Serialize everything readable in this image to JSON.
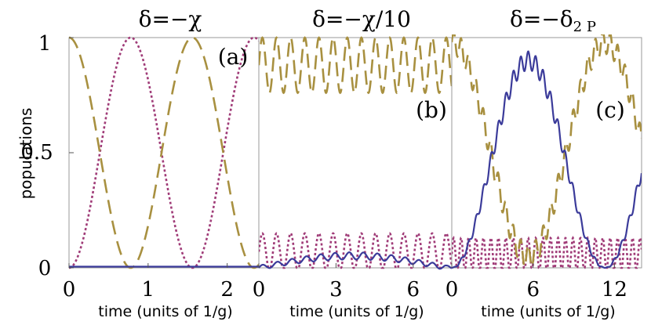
{
  "colors": {
    "solid": "#3b3b9a",
    "dashed": "#a89040",
    "dotted": "#a03c78"
  },
  "y_axis": {
    "label": "populations",
    "ticks": [
      "0",
      "0.5",
      "1"
    ],
    "tick_values": [
      0,
      0.5,
      1
    ],
    "ylim": [
      0,
      1
    ]
  },
  "chart_data": [
    {
      "type": "line",
      "title": "δ=−χ",
      "panel_label": "(a)",
      "xlabel": "time (units of 1/g)",
      "xlim": [
        0,
        2.4
      ],
      "ylim": [
        0,
        1
      ],
      "xticks": [
        0,
        1,
        2
      ],
      "xtick_labels": [
        "0",
        "1",
        "2"
      ],
      "series": [
        {
          "style": "solid",
          "description": "near zero",
          "model": "flat",
          "level": 0.005
        },
        {
          "style": "dashed",
          "description": "starts at 1",
          "model": "cos2",
          "period": 1.56,
          "amp": 1.0,
          "offset": 0.0
        },
        {
          "style": "dotted",
          "description": "starts at 0",
          "model": "sin2",
          "period": 1.56,
          "amp": 1.0,
          "offset": 0.0
        }
      ]
    },
    {
      "type": "line",
      "title": "δ=−χ/10",
      "panel_label": "(b)",
      "xlabel": "time (units of 1/g)",
      "xlim": [
        0,
        7.5
      ],
      "ylim": [
        0,
        1
      ],
      "xticks": [
        0,
        3,
        6
      ],
      "xtick_labels": [
        "0",
        "3",
        "6"
      ],
      "series": [
        {
          "style": "solid",
          "model": "beat",
          "mean": 0.04,
          "amp": 0.04,
          "slow_period": 7.3,
          "fast_period": 0.55
        },
        {
          "style": "dashed",
          "model": "fast",
          "mean": 0.88,
          "amp": 0.12,
          "fast_period": 0.55,
          "slow_period": 7.3
        },
        {
          "style": "dotted",
          "model": "fast",
          "mean": 0.07,
          "amp": 0.08,
          "fast_period": 0.55,
          "slow_period": 7.3
        }
      ]
    },
    {
      "type": "line",
      "title": "δ=−δ₂ₚ",
      "title_main": "δ=−δ",
      "title_sub": "2 P",
      "panel_label": "(c)",
      "xlabel": "time (units of 1/g)",
      "xlim": [
        0,
        14
      ],
      "ylim": [
        0,
        1
      ],
      "xticks": [
        0,
        6,
        12
      ],
      "xtick_labels": [
        "0",
        "6",
        "12"
      ],
      "series": [
        {
          "style": "solid",
          "model": "slow_sin2",
          "period": 11.3,
          "amp": 0.9,
          "ripple": 0.04,
          "ripple_period": 0.55
        },
        {
          "style": "dashed",
          "model": "slow_cos2",
          "period": 11.3,
          "amp": 0.93,
          "offset": 0.05,
          "ripple": 0.05,
          "ripple_period": 0.55
        },
        {
          "style": "dotted",
          "model": "fast",
          "mean": 0.06,
          "amp": 0.07,
          "fast_period": 0.55
        }
      ]
    }
  ]
}
